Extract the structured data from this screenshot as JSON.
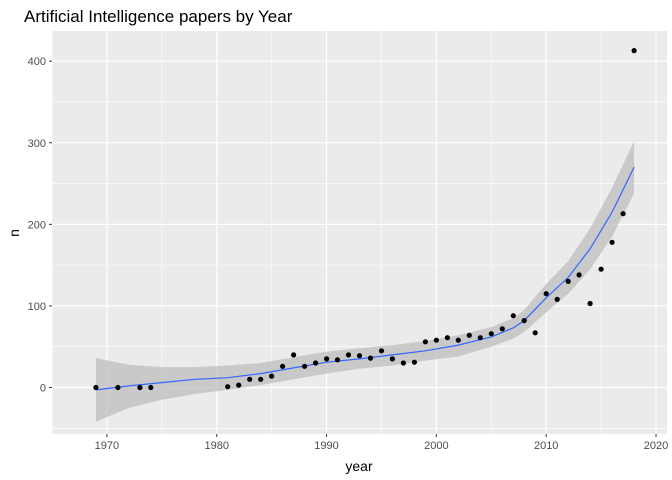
{
  "chart_data": {
    "type": "scatter",
    "title": "Artificial Intelligence papers by Year",
    "xlabel": "year",
    "ylabel": "n",
    "xlim": [
      1965,
      2021
    ],
    "ylim": [
      -57,
      437
    ],
    "x_ticks": [
      1970,
      1980,
      1990,
      2000,
      2010,
      2020
    ],
    "y_ticks": [
      0,
      100,
      200,
      300,
      400
    ],
    "grid": true,
    "background": "#EBEBEB",
    "grid_color": "#FFFFFF",
    "point_color": "#000000",
    "smooth_color": "#3366FF",
    "ribbon_color": "#BEBEBE",
    "points": {
      "x": [
        1969,
        1971,
        1973,
        1974,
        1981,
        1982,
        1983,
        1984,
        1985,
        1986,
        1987,
        1988,
        1989,
        1990,
        1991,
        1992,
        1993,
        1994,
        1995,
        1996,
        1997,
        1998,
        1999,
        2000,
        2001,
        2002,
        2003,
        2004,
        2005,
        2006,
        2007,
        2008,
        2009,
        2010,
        2011,
        2012,
        2013,
        2014,
        2015,
        2016,
        2017,
        2018
      ],
      "y": [
        0,
        0,
        0,
        0,
        1,
        3,
        10,
        10,
        14,
        26,
        40,
        26,
        30,
        35,
        34,
        40,
        39,
        36,
        45,
        35,
        30,
        31,
        56,
        58,
        61,
        58,
        64,
        61,
        66,
        72,
        88,
        82,
        67,
        115,
        108,
        130,
        138,
        103,
        145,
        178,
        213,
        413
      ]
    },
    "smooth": {
      "x": [
        1969,
        1972,
        1975,
        1978,
        1981,
        1984,
        1987,
        1990,
        1993,
        1996,
        1999,
        2002,
        2005,
        2007,
        2008,
        2010,
        2012,
        2014,
        2016,
        2018
      ],
      "y": [
        -3,
        2,
        6,
        10,
        12,
        17,
        24,
        31,
        35,
        40,
        45,
        52,
        62,
        73,
        82,
        110,
        135,
        170,
        215,
        270
      ],
      "lower": [
        -42,
        -25,
        -15,
        -8,
        -3,
        3,
        10,
        17,
        23,
        27,
        33,
        38,
        50,
        60,
        68,
        92,
        115,
        145,
        185,
        238
      ],
      "upper": [
        36,
        28,
        25,
        25,
        27,
        30,
        37,
        44,
        48,
        52,
        57,
        64,
        74,
        85,
        95,
        127,
        155,
        195,
        245,
        302
      ]
    }
  }
}
